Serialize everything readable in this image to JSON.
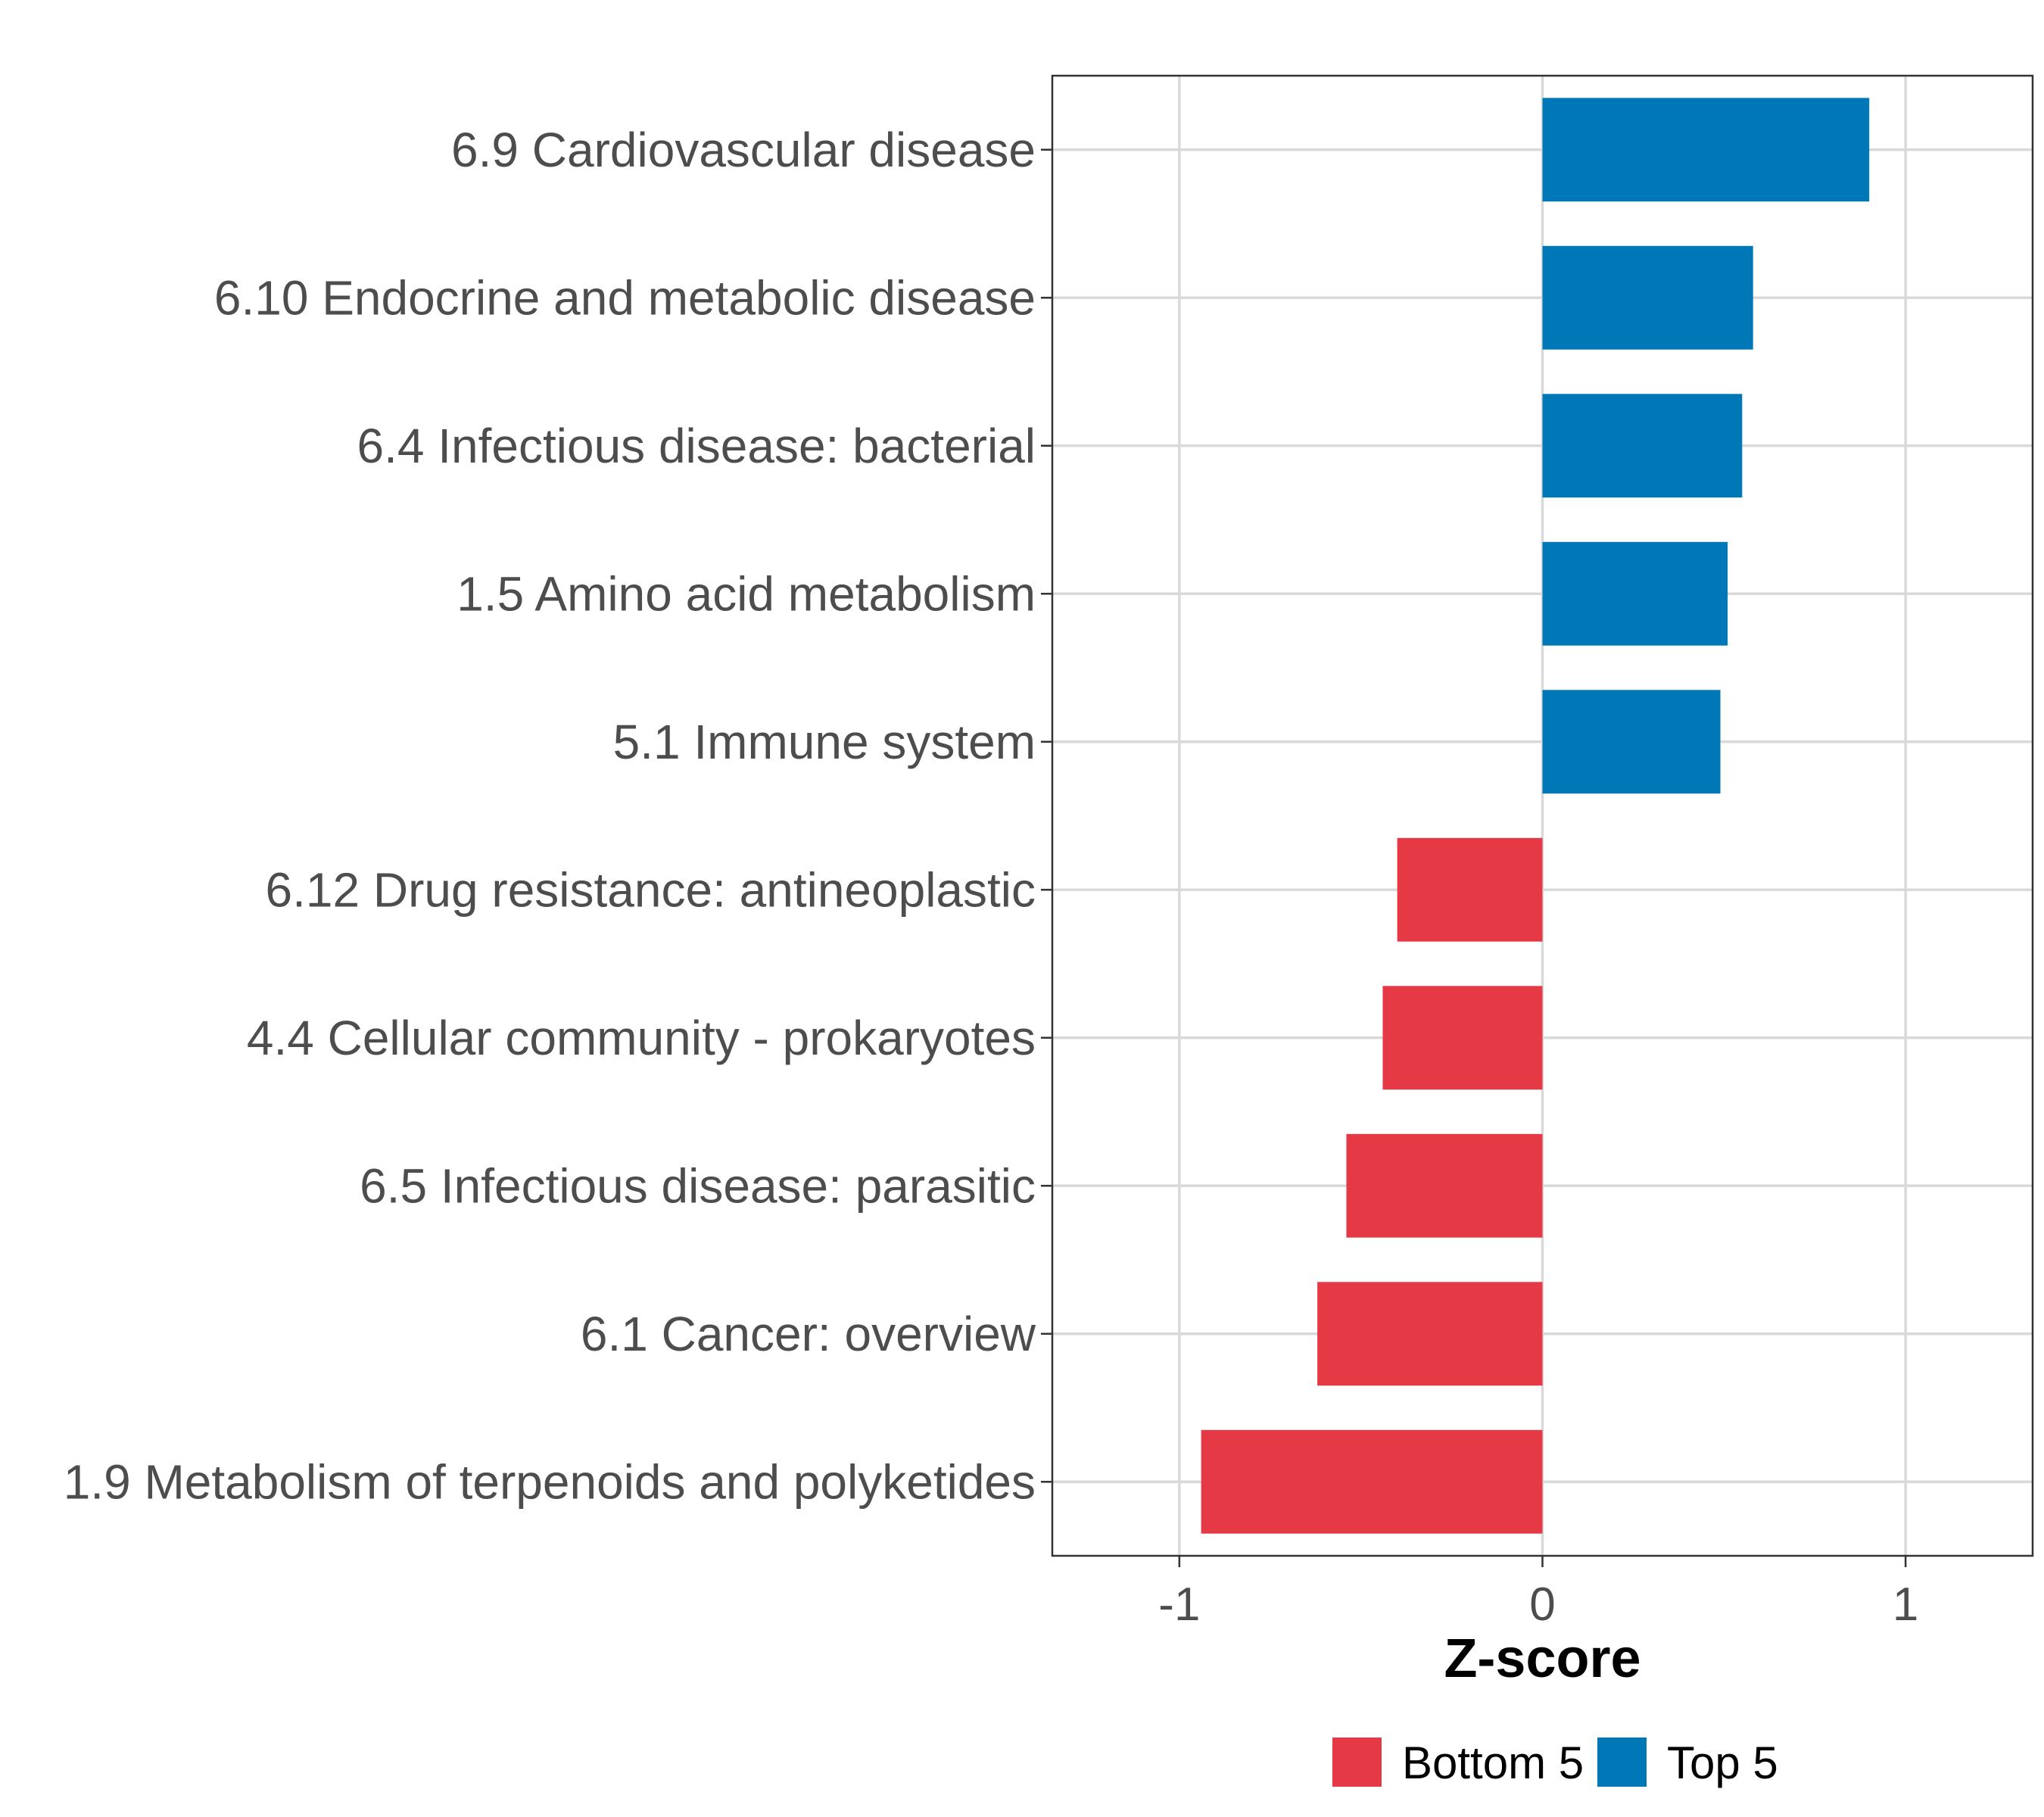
{
  "chart_data": {
    "type": "bar",
    "orientation": "horizontal",
    "categories": [
      "6.9 Cardiovascular disease",
      "6.10 Endocrine and metabolic disease",
      "6.4 Infectious disease: bacterial",
      "1.5 Amino acid metabolism",
      "5.1 Immune system",
      "6.12 Drug resistance: antineoplastic",
      "4.4 Cellular community - prokaryotes",
      "6.5 Infectious disease: parasitic",
      "6.1 Cancer: overview",
      "1.9 Metabolism of terpenoids and polyketides"
    ],
    "values": [
      0.9,
      0.58,
      0.55,
      0.51,
      0.49,
      -0.4,
      -0.44,
      -0.54,
      -0.62,
      -0.94
    ],
    "groups": [
      "Top 5",
      "Top 5",
      "Top 5",
      "Top 5",
      "Top 5",
      "Bottom 5",
      "Bottom 5",
      "Bottom 5",
      "Bottom 5",
      "Bottom 5"
    ],
    "title": "",
    "xlabel": "Z-score",
    "ylabel": "",
    "xlim": [
      -1.35,
      1.35
    ],
    "xticks": [
      -1,
      0,
      1
    ],
    "xtick_labels": [
      "-1",
      "0",
      "1"
    ],
    "grid": true,
    "legend": {
      "position": "bottom",
      "items": [
        {
          "label": "Bottom 5",
          "color": "#E63946"
        },
        {
          "label": "Top 5",
          "color": "#0077B6"
        }
      ]
    },
    "colors": {
      "Top 5": "#0077B6",
      "Bottom 5": "#E63946"
    }
  }
}
